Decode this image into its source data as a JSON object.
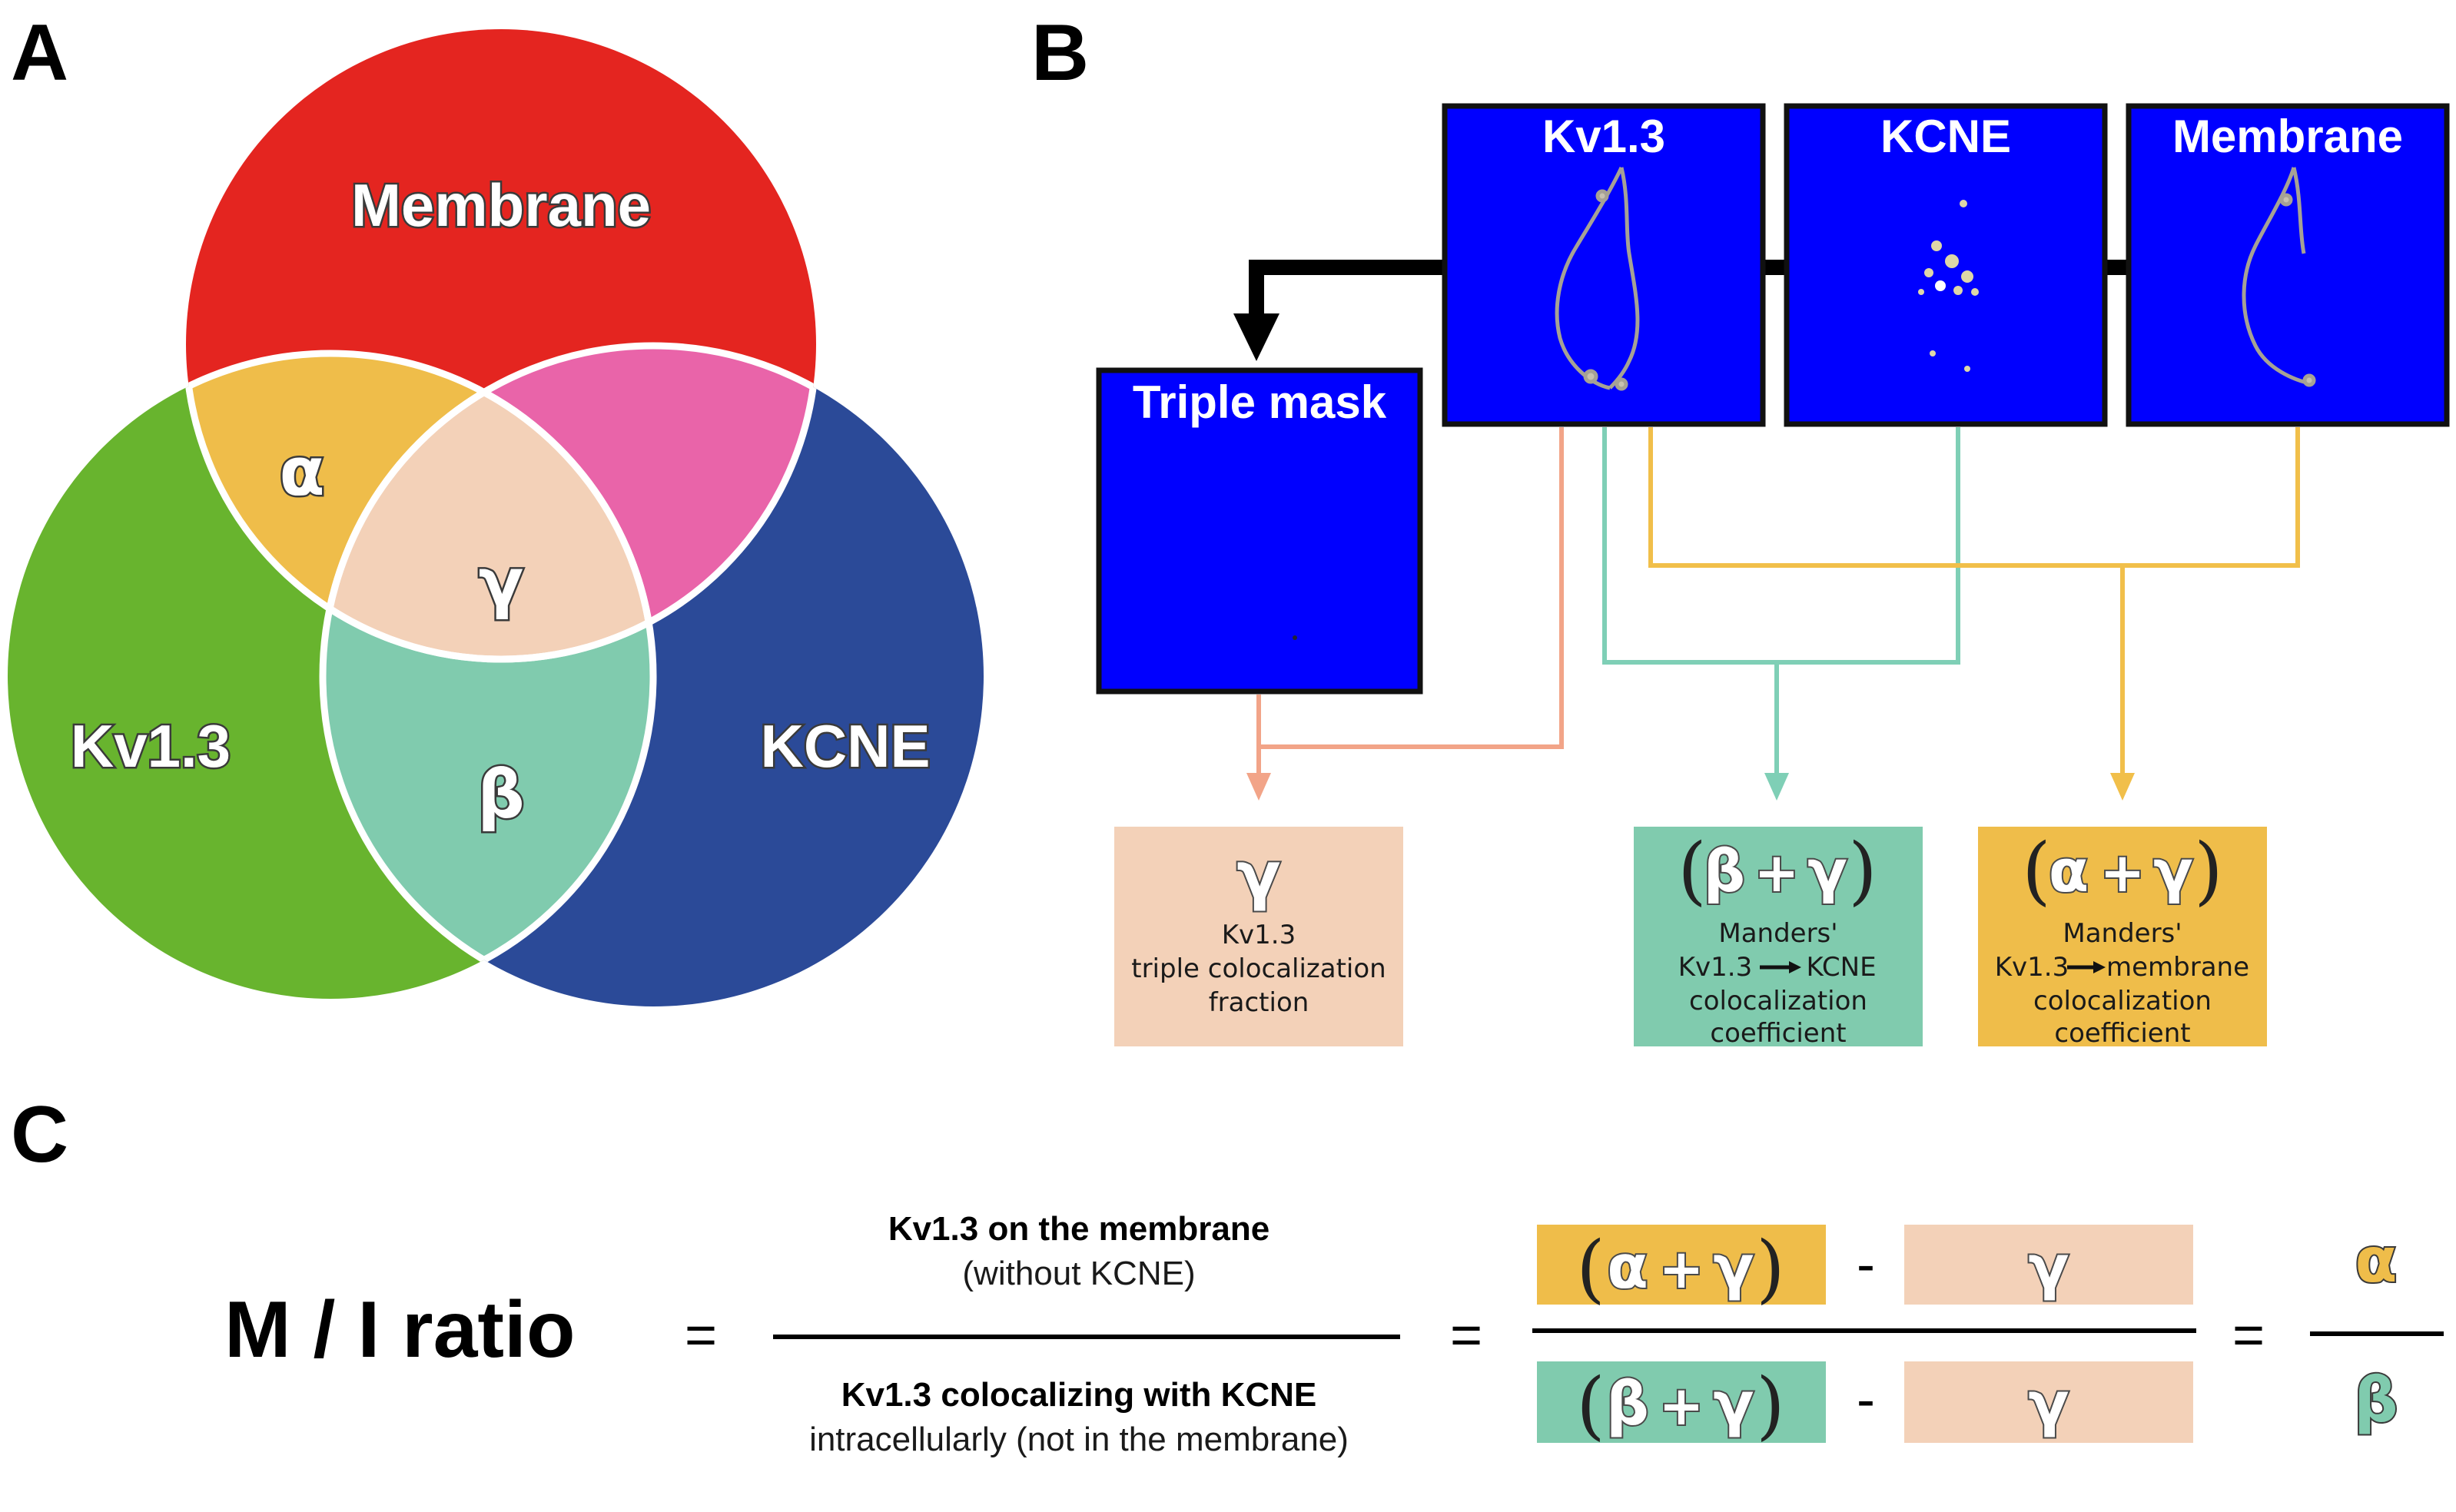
{
  "panels": {
    "a": "A",
    "b": "B",
    "c": "C"
  },
  "colors": {
    "membrane": "#e42520",
    "kv13": "#68b42e",
    "kcne": "#2b4a98",
    "alpha": "#efbd4a",
    "gamma": "#f3d1b8",
    "beta": "#80cbae",
    "magenta": "#e964a9",
    "image_bg": "#0000ff",
    "line_gamma": "#f2a488",
    "line_beta": "#7fcfb6",
    "line_alpha": "#f1bf4a"
  },
  "venn": {
    "membrane": "Membrane",
    "kv13": "Kv1.3",
    "kcne": "KCNE",
    "alpha": "α",
    "beta": "β",
    "gamma": "γ"
  },
  "images": {
    "kv13": "Kv1.3",
    "kcne": "KCNE",
    "membrane": "Membrane",
    "triple": "Triple mask"
  },
  "results": {
    "gamma": {
      "symbol": "γ",
      "lines": [
        "Kv1.3",
        "triple colocalization",
        "fraction"
      ]
    },
    "beta_gamma": {
      "open": "(",
      "s1": "β",
      "plus": "+",
      "s2": "γ",
      "close": ")",
      "lines": [
        "Manders'",
        "Kv1.3",
        "KCNE",
        "colocalization",
        "coefficient"
      ]
    },
    "alpha_gamma": {
      "open": "(",
      "s1": "α",
      "plus": "+",
      "s2": "γ",
      "close": ")",
      "lines": [
        "Manders'",
        "Kv1.3",
        "membrane",
        "colocalization",
        "coefficient"
      ]
    }
  },
  "equation": {
    "title": "M / I ratio",
    "eq": "=",
    "num_bold": "Kv1.3 on the membrane",
    "num_normal": "(without KCNE)",
    "den_bold": "Kv1.3 colocalizing with KCNE",
    "den_normal": "intracellularly (not in the membrane)",
    "minus": "-",
    "alpha": "α",
    "beta": "β",
    "gamma": "γ",
    "plus": "+",
    "open": "(",
    "close": ")"
  }
}
